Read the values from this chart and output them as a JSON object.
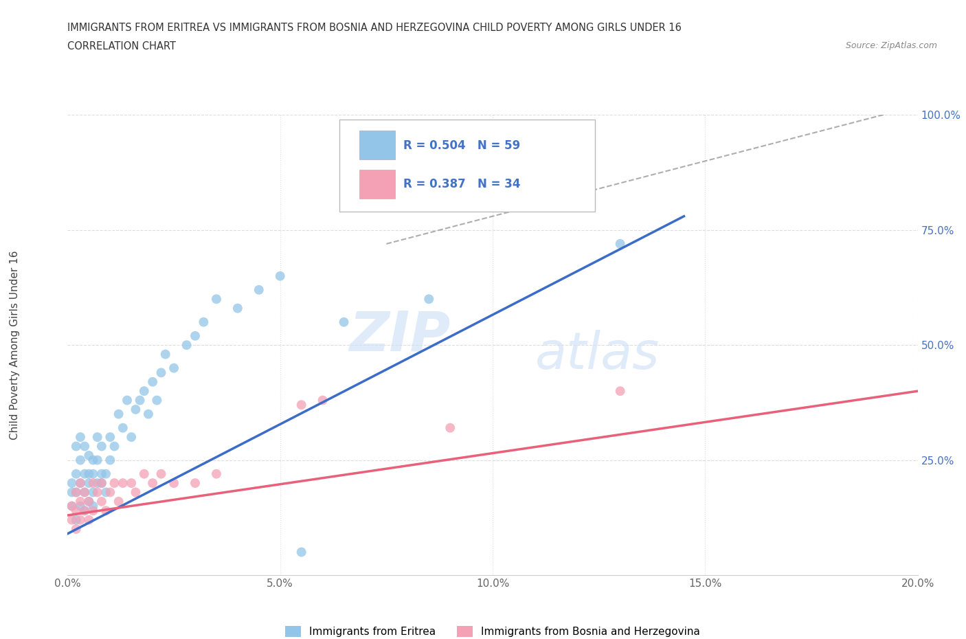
{
  "title_line1": "IMMIGRANTS FROM ERITREA VS IMMIGRANTS FROM BOSNIA AND HERZEGOVINA CHILD POVERTY AMONG GIRLS UNDER 16",
  "title_line2": "CORRELATION CHART",
  "source": "Source: ZipAtlas.com",
  "ylabel": "Child Poverty Among Girls Under 16",
  "xlim": [
    0.0,
    0.2
  ],
  "ylim": [
    0.0,
    1.0
  ],
  "xticks": [
    0.0,
    0.05,
    0.1,
    0.15,
    0.2
  ],
  "yticks": [
    0.0,
    0.25,
    0.5,
    0.75,
    1.0
  ],
  "color_eritrea": "#92C5E8",
  "color_bosnia": "#F4A0B5",
  "line_color_eritrea": "#3B6CC7",
  "line_color_bosnia": "#E8607A",
  "R_eritrea": 0.504,
  "N_eritrea": 59,
  "R_bosnia": 0.387,
  "N_bosnia": 34,
  "watermark_zip": "ZIP",
  "watermark_atlas": "atlas",
  "eritrea_x": [
    0.001,
    0.001,
    0.001,
    0.002,
    0.002,
    0.002,
    0.002,
    0.003,
    0.003,
    0.003,
    0.003,
    0.004,
    0.004,
    0.004,
    0.004,
    0.005,
    0.005,
    0.005,
    0.005,
    0.006,
    0.006,
    0.006,
    0.006,
    0.007,
    0.007,
    0.007,
    0.008,
    0.008,
    0.008,
    0.009,
    0.009,
    0.01,
    0.01,
    0.011,
    0.012,
    0.013,
    0.014,
    0.015,
    0.016,
    0.017,
    0.018,
    0.019,
    0.02,
    0.021,
    0.022,
    0.023,
    0.025,
    0.028,
    0.03,
    0.032,
    0.035,
    0.04,
    0.045,
    0.05,
    0.055,
    0.065,
    0.085,
    0.09,
    0.13
  ],
  "eritrea_y": [
    0.15,
    0.18,
    0.2,
    0.12,
    0.18,
    0.22,
    0.28,
    0.15,
    0.2,
    0.25,
    0.3,
    0.14,
    0.18,
    0.22,
    0.28,
    0.16,
    0.2,
    0.22,
    0.26,
    0.15,
    0.18,
    0.22,
    0.25,
    0.2,
    0.25,
    0.3,
    0.2,
    0.22,
    0.28,
    0.22,
    0.18,
    0.25,
    0.3,
    0.28,
    0.35,
    0.32,
    0.38,
    0.3,
    0.36,
    0.38,
    0.4,
    0.35,
    0.42,
    0.38,
    0.44,
    0.48,
    0.45,
    0.5,
    0.52,
    0.55,
    0.6,
    0.58,
    0.62,
    0.65,
    0.05,
    0.55,
    0.6,
    0.82,
    0.72
  ],
  "bosnia_x": [
    0.001,
    0.001,
    0.002,
    0.002,
    0.002,
    0.003,
    0.003,
    0.003,
    0.004,
    0.004,
    0.005,
    0.005,
    0.006,
    0.006,
    0.007,
    0.008,
    0.008,
    0.009,
    0.01,
    0.011,
    0.012,
    0.013,
    0.015,
    0.016,
    0.018,
    0.02,
    0.022,
    0.025,
    0.03,
    0.035,
    0.055,
    0.06,
    0.09,
    0.13
  ],
  "bosnia_y": [
    0.12,
    0.15,
    0.1,
    0.14,
    0.18,
    0.12,
    0.16,
    0.2,
    0.14,
    0.18,
    0.12,
    0.16,
    0.14,
    0.2,
    0.18,
    0.16,
    0.2,
    0.14,
    0.18,
    0.2,
    0.16,
    0.2,
    0.2,
    0.18,
    0.22,
    0.2,
    0.22,
    0.2,
    0.2,
    0.22,
    0.37,
    0.38,
    0.32,
    0.4
  ],
  "blue_line_x": [
    0.0,
    0.145
  ],
  "blue_line_y": [
    0.09,
    0.78
  ],
  "pink_line_x": [
    0.0,
    0.2
  ],
  "pink_line_y": [
    0.13,
    0.4
  ],
  "diag_line_x": [
    0.075,
    0.2
  ],
  "diag_line_y": [
    0.72,
    1.02
  ]
}
